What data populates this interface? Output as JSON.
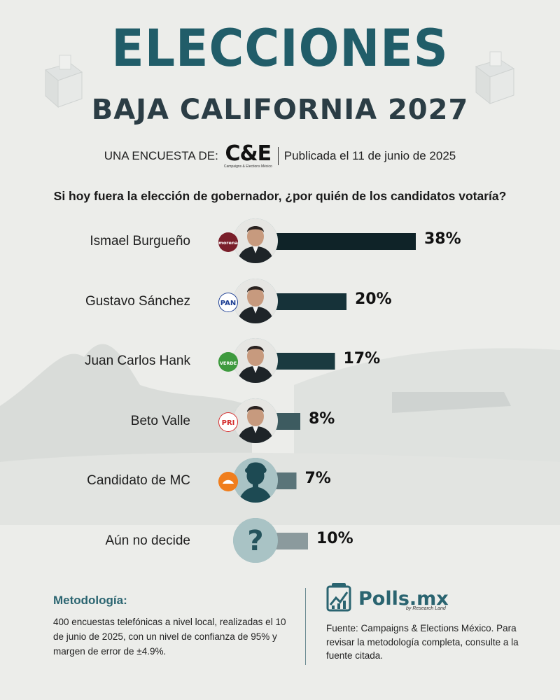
{
  "header": {
    "title": "ELECCIONES",
    "subtitle": "BAJA CALIFORNIA 2027",
    "byline_prefix": "UNA ENCUESTA DE:",
    "pollster_logo": "C&E",
    "pollster_logo_small": "Campaigns & Elections México",
    "published": "Publicada el 11 de junio de 2025"
  },
  "question": "Si hoy fuera la elección de gobernador, ¿por quién de los candidatos votaría?",
  "chart_data": {
    "type": "bar",
    "orientation": "horizontal",
    "categories": [
      "Ismael Burgueño",
      "Gustavo Sánchez",
      "Juan Carlos Hank",
      "Beto Valle",
      "Candidato de MC",
      "Aún no decide"
    ],
    "values": [
      38,
      20,
      17,
      8,
      7,
      10
    ],
    "value_labels": [
      "38%",
      "20%",
      "17%",
      "8%",
      "7%",
      "10%"
    ],
    "parties": [
      "morena",
      "PAN",
      "VERDE",
      "PRI",
      "MC",
      ""
    ],
    "bar_colors": [
      "#0f2328",
      "#163239",
      "#1a3a40",
      "#3d5b60",
      "#5a7479",
      "#8b9a9d"
    ],
    "party_colors": [
      "#7a1f2a",
      "#1d3f94",
      "#3e9a3e",
      "#d42c2c",
      "#f07e1d",
      ""
    ]
  },
  "footer": {
    "methodology_title": "Metodología:",
    "methodology_text": "400 encuestas telefónicas a nivel local, realizadas el 10 de junio de 2025, con un nivel de confianza de 95% y margen de error de ±4.9%.",
    "brand_name": "Polls.mx",
    "brand_sub": "by Research Land",
    "source_text": "Fuente: Campaigns & Elections México. Para revisar la metodología completa, consulte a la fuente citada."
  },
  "colors": {
    "title": "#215d69",
    "accent": "#2a6470",
    "background": "#ecedea"
  }
}
